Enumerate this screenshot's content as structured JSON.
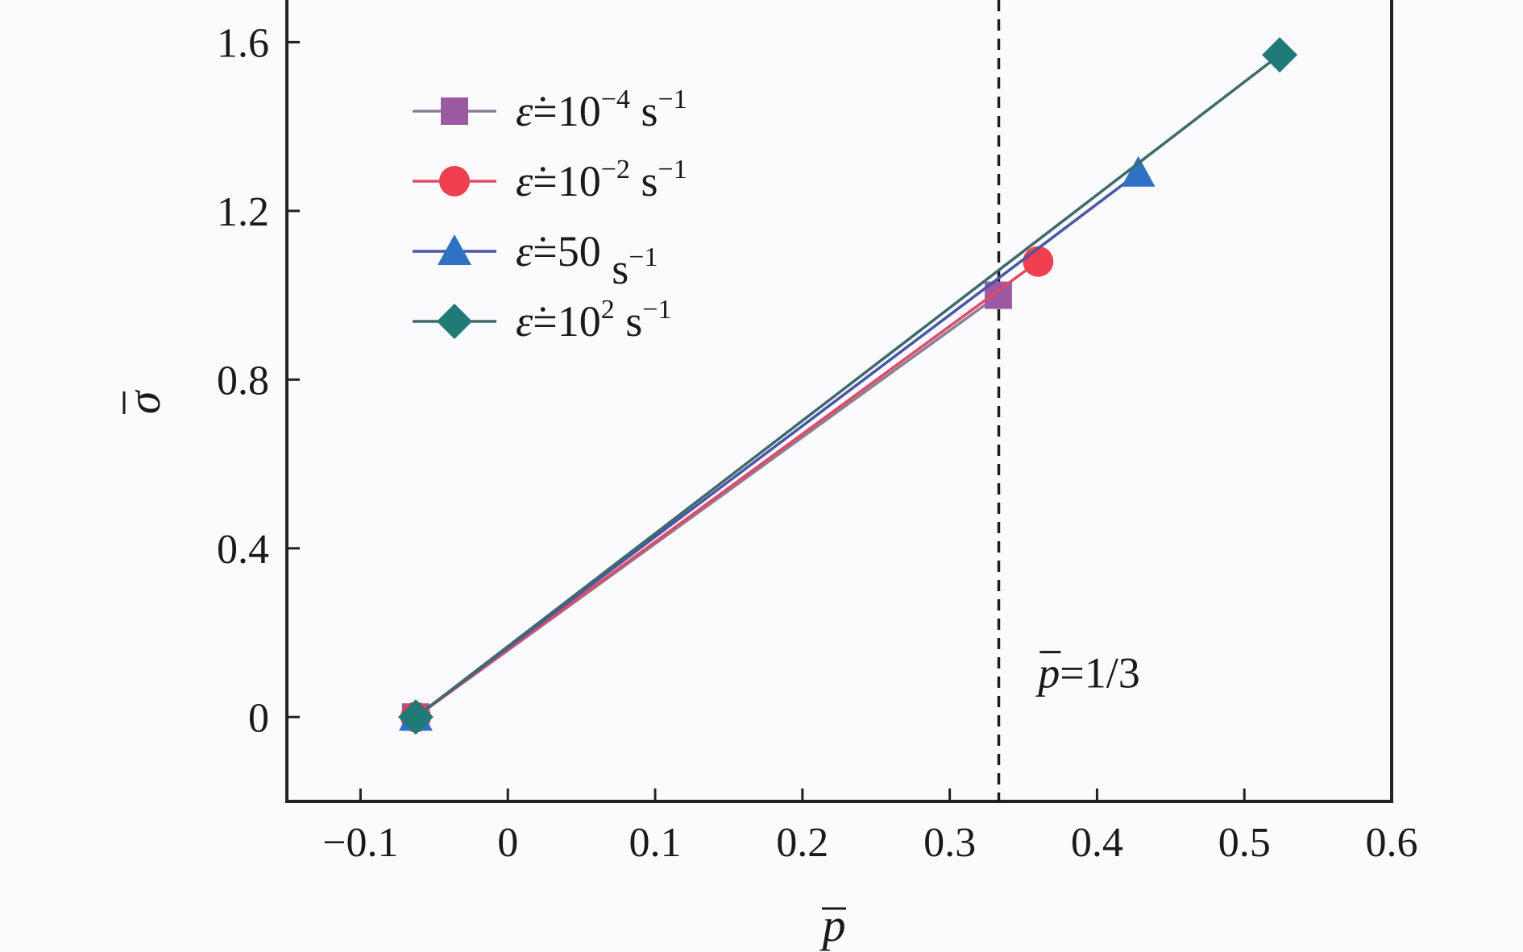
{
  "chart_data": {
    "type": "line",
    "xlabel": "p",
    "ylabel": "σ",
    "xlim": [
      -0.15,
      0.6
    ],
    "ylim": [
      -0.2,
      1.7
    ],
    "xticks": [
      -0.1,
      0,
      0.1,
      0.2,
      0.3,
      0.4,
      0.5,
      0.6
    ],
    "xtick_labels": [
      "−0.1",
      "0",
      "0.1",
      "0.2",
      "0.3",
      "0.4",
      "0.5",
      "0.6"
    ],
    "yticks": [
      0,
      0.4,
      0.8,
      1.2,
      1.6
    ],
    "ytick_labels": [
      "0",
      "0.4",
      "0.8",
      "1.2",
      "1.6"
    ],
    "grid": false,
    "legend_position": "top-left",
    "series": [
      {
        "name": "ε̇=10⁻⁴ s⁻¹",
        "legend_base": "=10",
        "legend_exp": "−4",
        "legend_unit": " s",
        "legend_unit_exp": "−1",
        "color": "#9b59a0",
        "line_color": "#8a7f92",
        "marker": "square",
        "x": [
          -0.0625,
          0.333
        ],
        "y": [
          0,
          1.0
        ]
      },
      {
        "name": "ε̇=10⁻² s⁻¹",
        "legend_base": "=10",
        "legend_exp": "−2",
        "legend_unit": " s",
        "legend_unit_exp": "−1",
        "color": "#f0404f",
        "line_color": "#e04a6a",
        "marker": "circle",
        "x": [
          -0.0625,
          0.36
        ],
        "y": [
          0,
          1.08
        ]
      },
      {
        "name": "ε̇=50 s⁻¹",
        "legend_base": "=50",
        "legend_exp": "",
        "legend_unit": " s",
        "legend_unit_exp": "−1",
        "color": "#2f72c4",
        "line_color": "#4a55a8",
        "marker": "triangle",
        "x": [
          -0.0625,
          0.428
        ],
        "y": [
          0,
          1.29
        ]
      },
      {
        "name": "ε̇=10² s⁻¹",
        "legend_base": "=10",
        "legend_exp": "2",
        "legend_unit": " s",
        "legend_unit_exp": "−1",
        "color": "#1f7a78",
        "line_color": "#3d6a6a",
        "marker": "diamond",
        "x": [
          -0.0625,
          0.524
        ],
        "y": [
          0,
          1.57
        ]
      }
    ],
    "reference_line": {
      "x": 0.3333,
      "style": "dashed",
      "color": "#1a1a1a"
    },
    "annotations": [
      {
        "text_prefix": "p",
        "text_suffix": "=1/3",
        "x": 0.36,
        "y": 0.07
      }
    ]
  }
}
